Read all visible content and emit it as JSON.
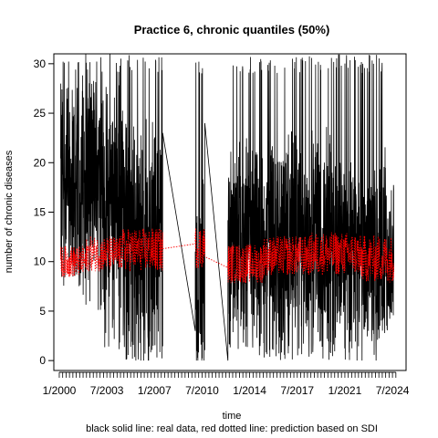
{
  "chart_data": {
    "type": "line",
    "title": "Practice 6, chronic quantiles (50%)",
    "xlabel": "time",
    "ylabel": "number of chronic diseases",
    "caption": "black solid line: real data, red dotted line: prediction based on SDI",
    "xlim": [
      1999.6,
      2025.5
    ],
    "ylim": [
      -1,
      31
    ],
    "x_tick_labels": [
      "1/2000",
      "7/2003",
      "1/2007",
      "7/2010",
      "1/2014",
      "7/2017",
      "1/2021",
      "7/2024"
    ],
    "x_tick_values": [
      2000.0,
      2003.5,
      2007.0,
      2010.5,
      2014.0,
      2017.5,
      2021.0,
      2024.5
    ],
    "minor_tick_step_years": 0.25,
    "minor_tick_range": [
      2000.0,
      2024.75
    ],
    "y_tick_labels": [
      "0",
      "5",
      "10",
      "15",
      "20",
      "25",
      "30"
    ],
    "y_tick_values": [
      0,
      5,
      10,
      15,
      20,
      25,
      30
    ],
    "grid": false,
    "series": [
      {
        "name": "real data",
        "color": "#000000",
        "style": "solid",
        "segments": [
          {
            "x_range": [
              2000.1,
              2001.6
            ],
            "center": 18,
            "spread": 10,
            "low": 7,
            "high": 31
          },
          {
            "x_range": [
              2001.6,
              2003.2
            ],
            "center": 19,
            "spread": 10,
            "low": 5,
            "high": 31
          },
          {
            "x_range": [
              2003.2,
              2004.9
            ],
            "center": 16,
            "spread": 11,
            "low": 1,
            "high": 31
          },
          {
            "x_range": [
              2004.9,
              2007.6
            ],
            "center": 12,
            "spread": 12,
            "low": 0,
            "high": 31
          },
          {
            "x_range": [
              2007.6,
              2010.0
            ],
            "center": 23,
            "spread": 0,
            "low": 3,
            "high": 23,
            "type": "gap-line"
          },
          {
            "x_range": [
              2010.0,
              2010.7
            ],
            "center": 8,
            "spread": 10,
            "low": 0,
            "high": 31
          },
          {
            "x_range": [
              2010.7,
              2012.4
            ],
            "center": 3,
            "spread": 0,
            "low": 0,
            "high": 24,
            "type": "gap-line"
          },
          {
            "x_range": [
              2012.4,
              2017.0
            ],
            "center": 12,
            "spread": 10,
            "low": 0,
            "high": 31
          },
          {
            "x_range": [
              2017.0,
              2020.5
            ],
            "center": 12,
            "spread": 10,
            "low": 0,
            "high": 31
          },
          {
            "x_range": [
              2020.5,
              2024.0
            ],
            "center": 11,
            "spread": 10,
            "low": 0,
            "high": 31
          },
          {
            "x_range": [
              2024.0,
              2024.6
            ],
            "center": 10,
            "spread": 6,
            "low": 3,
            "high": 18
          }
        ]
      },
      {
        "name": "prediction based on SDI",
        "color": "#ff0000",
        "style": "dotted",
        "segments": [
          {
            "x_range": [
              2000.1,
              2002.0
            ],
            "center": 10,
            "spread": 1.6
          },
          {
            "x_range": [
              2002.0,
              2004.5
            ],
            "center": 10.8,
            "spread": 1.8
          },
          {
            "x_range": [
              2004.5,
              2007.6
            ],
            "center": 11.2,
            "spread": 2.2
          },
          {
            "x_range": [
              2007.6,
              2010.0
            ],
            "center": 11.8,
            "spread": 0,
            "type": "gap-line",
            "start": 11.3,
            "end": 11.8
          },
          {
            "x_range": [
              2010.0,
              2010.7
            ],
            "center": 11.5,
            "spread": 2.2
          },
          {
            "x_range": [
              2010.7,
              2012.4
            ],
            "center": 10,
            "spread": 0,
            "type": "gap-line",
            "start": 10.5,
            "end": 9.4
          },
          {
            "x_range": [
              2012.4,
              2015.0
            ],
            "center": 9.8,
            "spread": 2.0
          },
          {
            "x_range": [
              2015.0,
              2018.5
            ],
            "center": 10.6,
            "spread": 2.0
          },
          {
            "x_range": [
              2018.5,
              2022.0
            ],
            "center": 10.8,
            "spread": 2.2
          },
          {
            "x_range": [
              2022.0,
              2024.6
            ],
            "center": 10.3,
            "spread": 2.4
          }
        ]
      }
    ]
  }
}
